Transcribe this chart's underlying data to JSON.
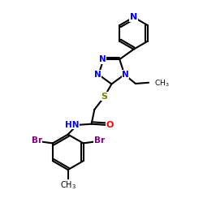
{
  "bg_color": "#ffffff",
  "atom_colors": {
    "N": "#0000ff",
    "O": "#ff0000",
    "S": "#808000",
    "Br": "#800080",
    "C": "#000000",
    "H": "#000000"
  },
  "bond_color": "#000000",
  "bond_width": 1.5,
  "figsize": [
    2.5,
    2.5
  ],
  "dpi": 100,
  "xlim": [
    0,
    10
  ],
  "ylim": [
    0,
    10
  ]
}
